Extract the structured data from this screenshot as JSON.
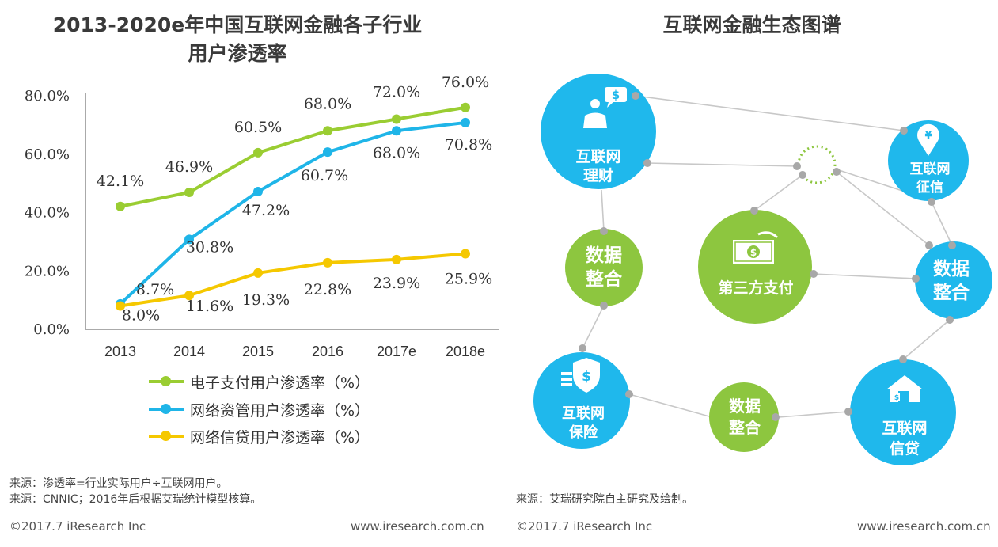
{
  "left_panel": {
    "title_line1": "2013-2020e年中国互联网金融各子行业",
    "title_line2": "用户渗透率",
    "notes": [
      "来源：渗透率=行业实际用户÷互联网用户。",
      "来源：CNNIC；2016年后根据艾瑞统计模型核算。"
    ],
    "copyright": "©2017.7 iResearch Inc",
    "website": "www.iresearch.com.cn"
  },
  "right_panel": {
    "title": "互联网金融生态图谱",
    "note": "来源：艾瑞研究院自主研究及绘制。",
    "copyright": "©2017.7 iResearch Inc",
    "website": "www.iresearch.com.cn",
    "nodes": {
      "licai": {
        "line1": "互联网",
        "line2": "理财",
        "icon": "person-speech-dollar-icon"
      },
      "zhengxin": {
        "line1": "互联网",
        "line2": "征信",
        "icon": "location-pin-yen-icon"
      },
      "zhifu": {
        "line1": "第三方支付",
        "icon": "cash-bill-icon"
      },
      "data_left": {
        "line1": "数据",
        "line2": "整合"
      },
      "data_right": {
        "line1": "数据",
        "line2": "整合"
      },
      "data_bottom": {
        "line1": "数据",
        "line2": "整合"
      },
      "baoxian": {
        "line1": "互联网",
        "line2": "保险",
        "icon": "shield-dollar-icon"
      },
      "xindai": {
        "line1": "互联网",
        "line2": "信贷",
        "icon": "house-icon"
      }
    },
    "colors": {
      "blue": "#1fb8ec",
      "green": "#8dc63f",
      "connector": "#c8c8c8",
      "dot": "#a8a8a8"
    }
  },
  "chart_data": {
    "type": "line",
    "title": "2013-2020e年中国互联网金融各子行业用户渗透率",
    "categories": [
      "2013",
      "2014",
      "2015",
      "2016",
      "2017e",
      "2018e"
    ],
    "y_ticks": [
      "0.0%",
      "20.0%",
      "40.0%",
      "60.0%",
      "80.0%"
    ],
    "ylim": [
      0,
      80
    ],
    "series": [
      {
        "name": "电子支付用户渗透率（%）",
        "color": "#9acd32",
        "values": [
          42.1,
          46.9,
          60.5,
          68.0,
          72.0,
          76.0
        ],
        "labels": [
          "42.1%",
          "46.9%",
          "60.5%",
          "68.0%",
          "72.0%",
          "76.0%"
        ]
      },
      {
        "name": "网络资管用户渗透率（%）",
        "color": "#1fb5e8",
        "values": [
          8.7,
          30.8,
          47.2,
          60.7,
          68.0,
          70.8
        ],
        "labels": [
          "8.7%",
          "30.8%",
          "47.2%",
          "60.7%",
          "68.0%",
          "70.8%"
        ]
      },
      {
        "name": "网络信贷用户渗透率（%）",
        "color": "#f5c800",
        "values": [
          8.0,
          11.6,
          19.3,
          22.8,
          23.9,
          25.9
        ],
        "labels": [
          "8.0%",
          "11.6%",
          "19.3%",
          "22.8%",
          "23.9%",
          "25.9%"
        ]
      }
    ]
  }
}
